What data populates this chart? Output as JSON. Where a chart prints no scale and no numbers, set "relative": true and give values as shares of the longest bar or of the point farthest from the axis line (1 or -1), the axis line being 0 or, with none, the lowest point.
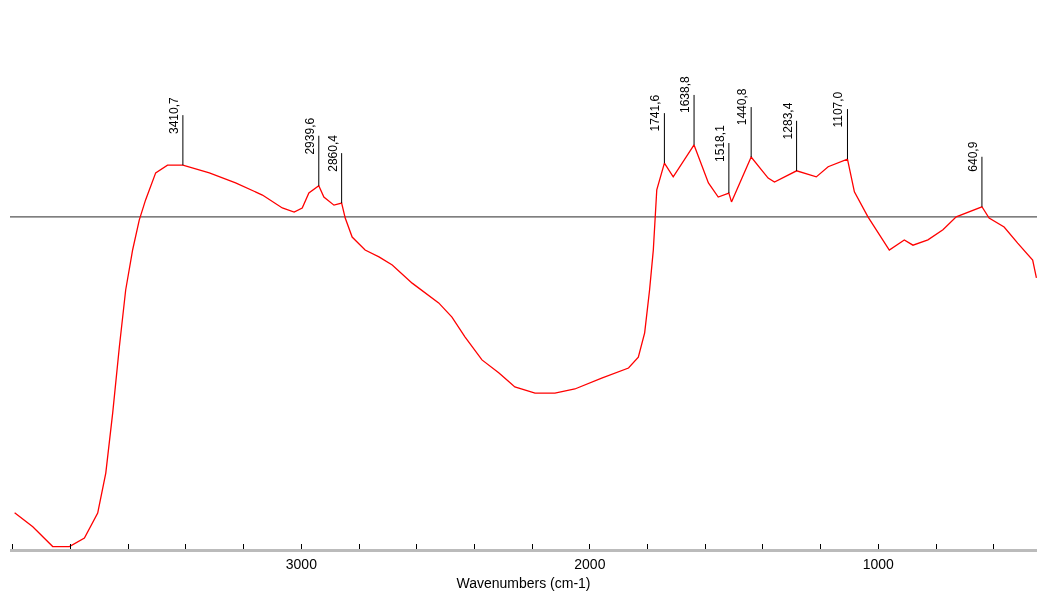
{
  "chart_data": {
    "type": "line",
    "relative": true,
    "xlabel": "Wavenumbers (cm-1)",
    "xlim": [
      4010,
      450
    ],
    "xticks": [
      {
        "value": 4000,
        "label": null
      },
      {
        "value": 3800,
        "label": null
      },
      {
        "value": 3600,
        "label": null
      },
      {
        "value": 3400,
        "label": null
      },
      {
        "value": 3200,
        "label": null
      },
      3000,
      {
        "value": 2800,
        "label": null
      },
      {
        "value": 2600,
        "label": null
      },
      {
        "value": 2400,
        "label": null
      },
      {
        "value": 2200,
        "label": null
      },
      2000,
      {
        "value": 1800,
        "label": null
      },
      {
        "value": 1600,
        "label": null
      },
      {
        "value": 1400,
        "label": null
      },
      {
        "value": 1200,
        "label": null
      },
      1000,
      {
        "value": 800,
        "label": null
      },
      {
        "value": 600,
        "label": null
      }
    ],
    "x": [
      3994,
      3931,
      3862,
      3804,
      3752,
      3706,
      3678,
      3654,
      3631,
      3609,
      3585,
      3562,
      3540,
      3505,
      3464,
      3410.7,
      3319,
      3228,
      3135,
      3066,
      3025,
      2997,
      2974,
      2939.6,
      2922,
      2887,
      2860.4,
      2848,
      2824,
      2779,
      2731,
      2685,
      2616,
      2524,
      2478,
      2433,
      2374,
      2316,
      2260,
      2190,
      2121,
      2052,
      1959,
      1866,
      1832,
      1810,
      1793,
      1780,
      1768,
      1741.6,
      1711,
      1638.8,
      1589,
      1555,
      1518.1,
      1509,
      1440.8,
      1382,
      1360,
      1283.4,
      1215,
      1174,
      1107,
      1083,
      1036,
      962,
      910,
      880,
      828,
      776,
      730,
      640.9,
      616,
      564,
      517,
      465,
      452
    ],
    "series": [
      {
        "color": "#ff0000",
        "values": [
          0.09,
          0.055,
          0.006,
          0.006,
          0.027,
          0.089,
          0.188,
          0.337,
          0.5,
          0.641,
          0.74,
          0.814,
          0.864,
          0.931,
          0.95,
          0.95,
          0.931,
          0.906,
          0.876,
          0.844,
          0.834,
          0.844,
          0.881,
          0.899,
          0.871,
          0.851,
          0.856,
          0.819,
          0.772,
          0.74,
          0.723,
          0.703,
          0.658,
          0.609,
          0.574,
          0.525,
          0.468,
          0.436,
          0.401,
          0.386,
          0.386,
          0.396,
          0.423,
          0.448,
          0.475,
          0.535,
          0.641,
          0.74,
          0.889,
          0.955,
          0.921,
          1.0,
          0.906,
          0.871,
          0.881,
          0.859,
          0.97,
          0.918,
          0.908,
          0.936,
          0.921,
          0.946,
          0.965,
          0.884,
          0.822,
          0.74,
          0.765,
          0.752,
          0.765,
          0.79,
          0.822,
          0.847,
          0.819,
          0.797,
          0.757,
          0.715,
          0.671
        ]
      }
    ],
    "annotations": [
      {
        "text": "3410,7",
        "x": 3410.7,
        "y": 0.95
      },
      {
        "text": "2939,6",
        "x": 2939.6,
        "y": 0.899
      },
      {
        "text": "2860,4",
        "x": 2860.4,
        "y": 0.856
      },
      {
        "text": "1741,6",
        "x": 1741.6,
        "y": 0.955
      },
      {
        "text": "1638,8",
        "x": 1638.8,
        "y": 1.0
      },
      {
        "text": "1518,1",
        "x": 1518.1,
        "y": 0.881
      },
      {
        "text": "1440,8",
        "x": 1440.8,
        "y": 0.97
      },
      {
        "text": "1283,4",
        "x": 1283.4,
        "y": 0.936
      },
      {
        "text": "1107,0",
        "x": 1107,
        "y": 0.965
      },
      {
        "text": "640,9",
        "x": 640.9,
        "y": 0.847
      }
    ],
    "ref_lines": [
      {
        "axis": "y",
        "value": 0.822,
        "color": "#555555"
      }
    ],
    "grid": false
  }
}
